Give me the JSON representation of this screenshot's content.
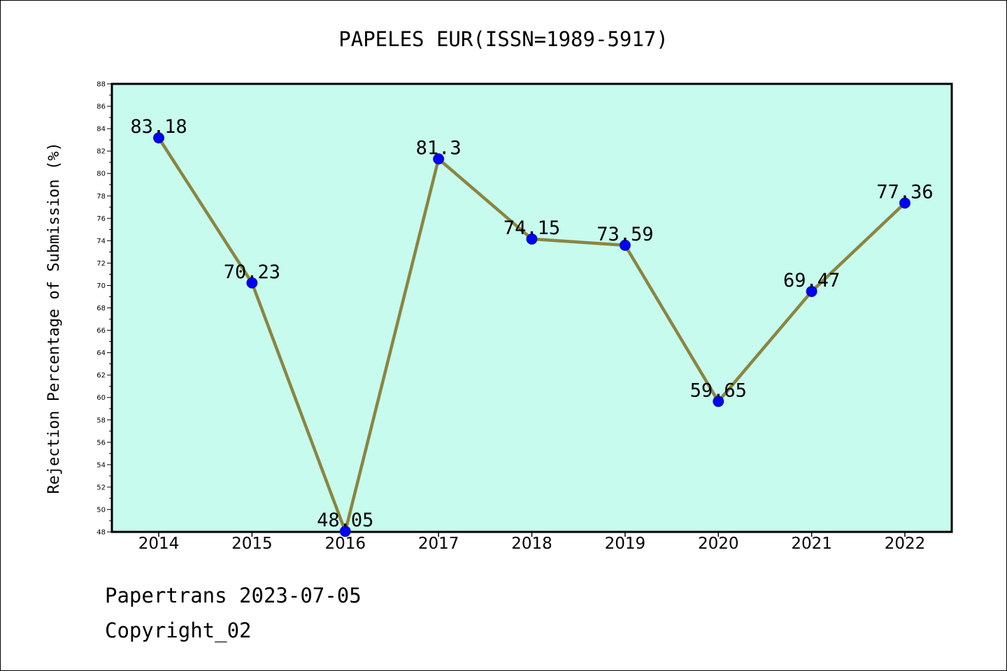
{
  "chart_data": {
    "type": "line",
    "title": "PAPELES EUR(ISSN=1989-5917)",
    "xlabel": "",
    "ylabel": "Rejection Percentage of Submission (%)",
    "categories": [
      "2014",
      "2015",
      "2016",
      "2017",
      "2018",
      "2019",
      "2020",
      "2021",
      "2022"
    ],
    "series": [
      {
        "values": [
          83.18,
          70.23,
          48.05,
          81.3,
          74.15,
          73.59,
          59.65,
          69.47,
          77.36
        ]
      }
    ],
    "data_labels": [
      "83.18",
      "70.23",
      "48.05",
      "81.3",
      "74.15",
      "73.59",
      "59.65",
      "69.47",
      "77.36"
    ],
    "ylim": [
      48,
      88
    ],
    "y_major_step": 2,
    "y_ticks": [
      "48",
      "50",
      "52",
      "54",
      "56",
      "58",
      "60",
      "62",
      "64",
      "66",
      "68",
      "70",
      "72",
      "74",
      "76",
      "78",
      "80",
      "82",
      "84",
      "86",
      "88"
    ],
    "grid": false,
    "legend": "none",
    "colors": {
      "plot_background": "#c7fbee",
      "line": "#8b8540",
      "marker": "#0000ff",
      "marker_edge": "#1f1f7a",
      "axes": "#000000"
    }
  },
  "footer": {
    "line1": "Papertrans 2023-07-05",
    "line2": "Copyright_02"
  }
}
